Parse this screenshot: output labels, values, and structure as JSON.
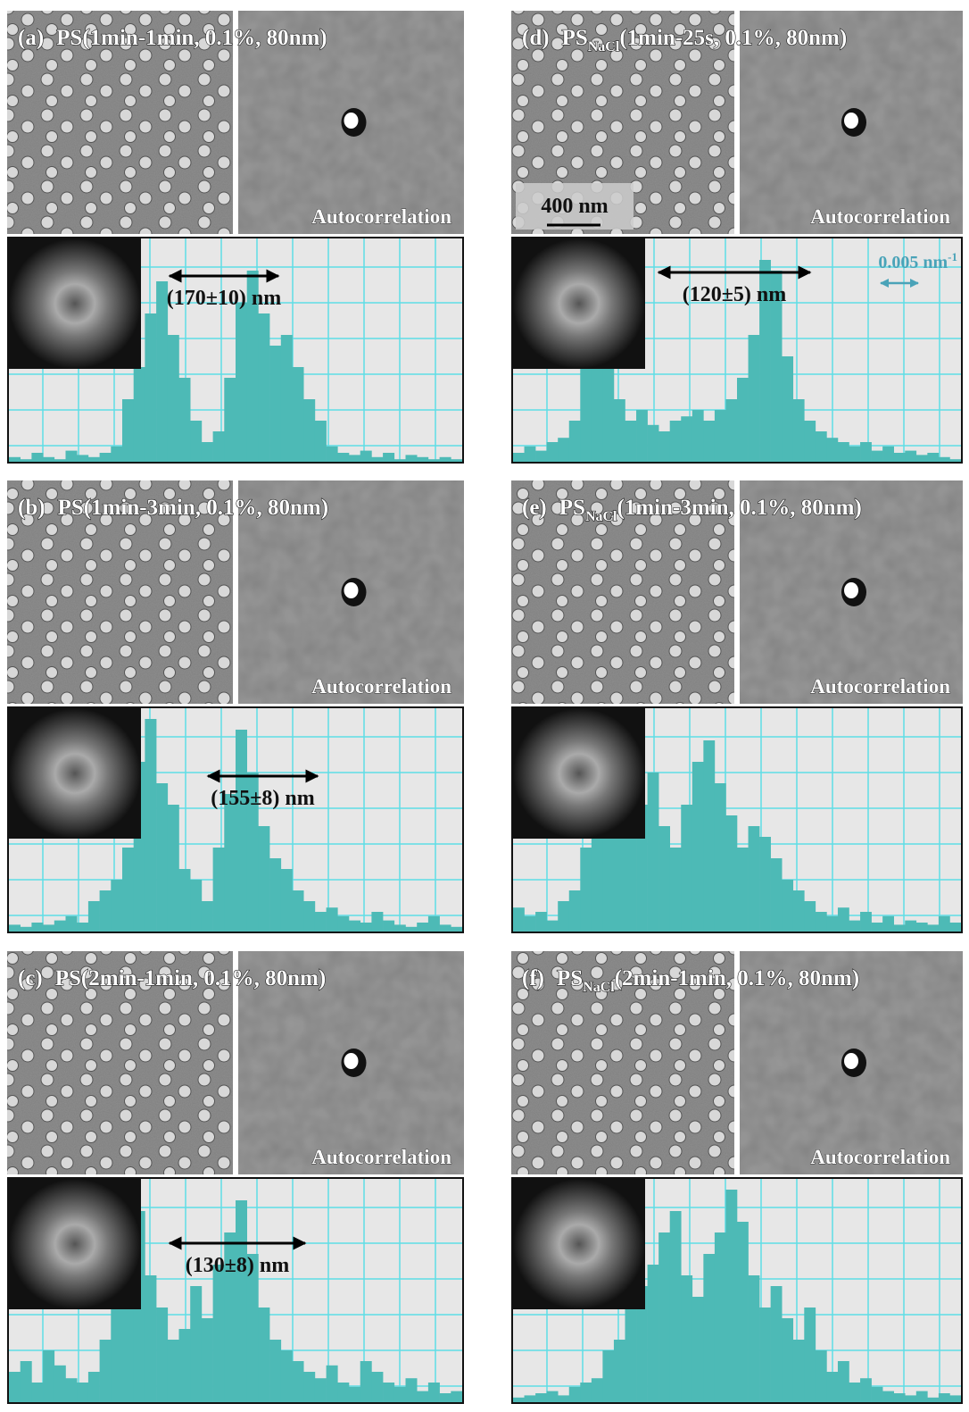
{
  "panels": [
    {
      "label": "(a)",
      "title": "PS(1min-1min, 0.1%, 80nm)",
      "autocorrelation": "Autocorrelation",
      "spacing": "(170±10) nm",
      "histogram": [
        3,
        2,
        5,
        3,
        2,
        6,
        4,
        3,
        5,
        8,
        30,
        45,
        70,
        85,
        60,
        40,
        20,
        10,
        15,
        40,
        75,
        90,
        70,
        55,
        60,
        45,
        30,
        20,
        8,
        5,
        4,
        6,
        3,
        5,
        2,
        4,
        3,
        2,
        3,
        2
      ]
    },
    {
      "label": "(b)",
      "title": "PS(1min-3min, 0.1%, 80nm)",
      "autocorrelation": "Autocorrelation",
      "spacing": "(155±8) nm",
      "histogram": [
        4,
        3,
        5,
        4,
        6,
        8,
        5,
        15,
        20,
        25,
        40,
        80,
        100,
        70,
        60,
        30,
        25,
        15,
        40,
        65,
        95,
        75,
        50,
        35,
        30,
        20,
        15,
        10,
        12,
        8,
        6,
        5,
        10,
        6,
        4,
        3,
        5,
        8,
        4,
        3
      ]
    },
    {
      "label": "(c)",
      "title": "PS(2min-1min, 0.1%, 80nm)",
      "autocorrelation": "Autocorrelation",
      "spacing": "(130±8) nm",
      "histogram": [
        15,
        20,
        10,
        25,
        18,
        12,
        10,
        15,
        30,
        50,
        75,
        90,
        60,
        45,
        30,
        35,
        55,
        40,
        65,
        80,
        95,
        70,
        45,
        30,
        25,
        20,
        15,
        12,
        18,
        10,
        8,
        20,
        15,
        10,
        8,
        12,
        6,
        10,
        5,
        6
      ]
    },
    {
      "label": "(d)",
      "title_prefix": "PS",
      "title_subscript": "NaCl",
      "title_suffix": "(1min-25s, 0.1%, 80nm)",
      "autocorrelation": "Autocorrelation",
      "spacing": "(120±5) nm",
      "scale_bar": "400 nm",
      "frequency_bar": {
        "text": "0.005 nm",
        "superscript": "-1"
      },
      "histogram": [
        5,
        8,
        6,
        10,
        12,
        20,
        60,
        80,
        50,
        30,
        20,
        25,
        18,
        15,
        20,
        22,
        25,
        20,
        25,
        30,
        40,
        60,
        95,
        90,
        50,
        30,
        20,
        15,
        12,
        10,
        8,
        10,
        6,
        8,
        5,
        6,
        4,
        5,
        3,
        2
      ]
    },
    {
      "label": "(e)",
      "title_prefix": "PS",
      "title_subscript": "NaCl",
      "title_suffix": "(1min-3min, 0.1%, 80nm)",
      "autocorrelation": "Autocorrelation",
      "histogram": [
        12,
        8,
        10,
        6,
        15,
        20,
        40,
        60,
        85,
        70,
        55,
        60,
        75,
        50,
        40,
        60,
        80,
        90,
        70,
        55,
        40,
        50,
        45,
        35,
        25,
        20,
        15,
        10,
        8,
        12,
        6,
        10,
        5,
        8,
        4,
        6,
        5,
        4,
        8,
        5
      ]
    },
    {
      "label": "(f)",
      "title_prefix": "PS",
      "title_subscript": "NaCl",
      "title_suffix": "(2min-1min, 0.1%, 80nm)",
      "autocorrelation": "Autocorrelation",
      "histogram": [
        3,
        4,
        5,
        6,
        4,
        8,
        10,
        12,
        25,
        30,
        45,
        55,
        65,
        80,
        90,
        60,
        50,
        70,
        80,
        100,
        85,
        60,
        45,
        55,
        40,
        30,
        45,
        25,
        15,
        20,
        10,
        12,
        8,
        6,
        5,
        4,
        6,
        3,
        5,
        4
      ]
    }
  ]
}
